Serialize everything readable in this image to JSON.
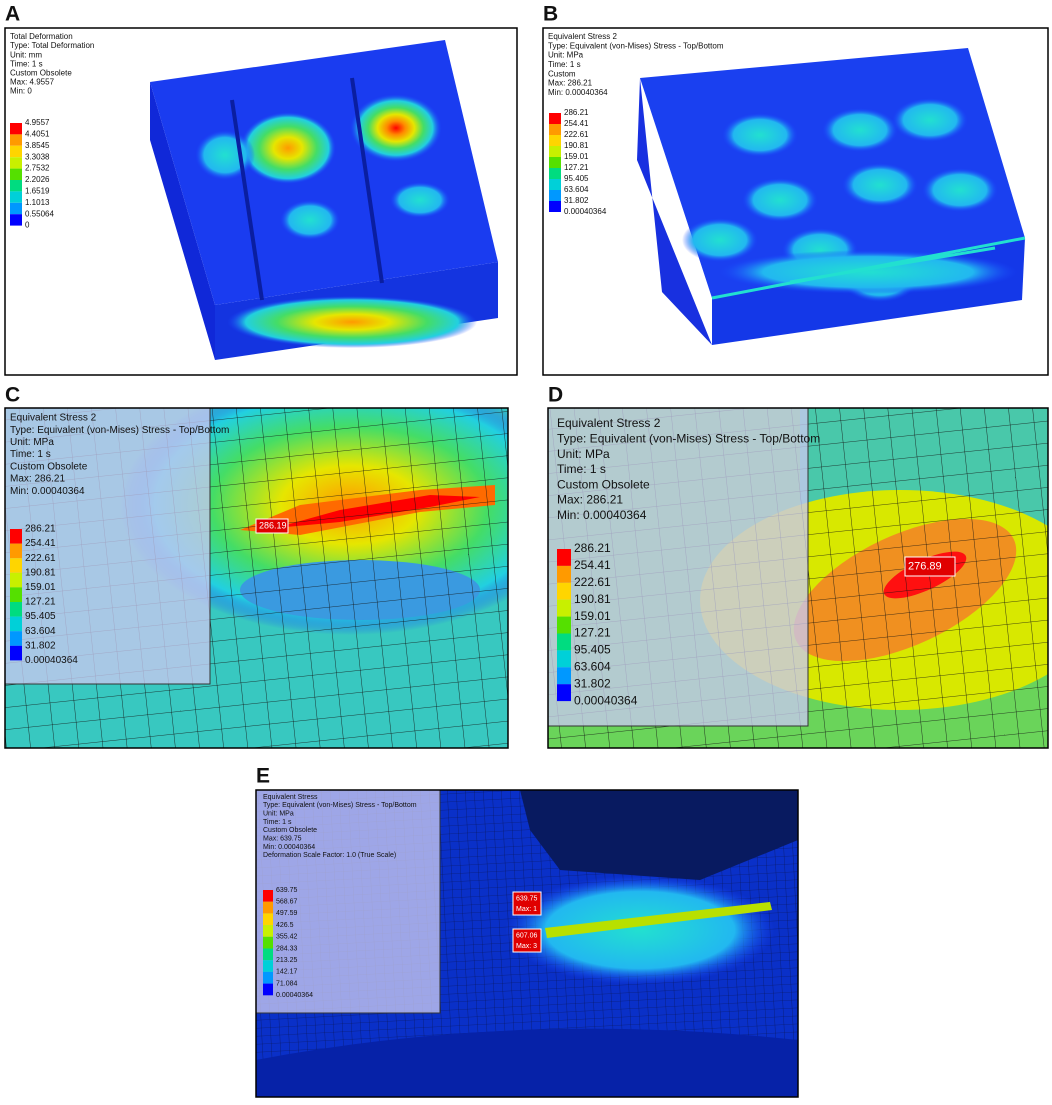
{
  "panels": [
    {
      "label": "A",
      "info": [
        "Total Deformation",
        "Type: Total Deformation",
        "Unit: mm",
        "Time: 1 s",
        "Custom Obsolete",
        "Max: 4.9557",
        "Min: 0"
      ],
      "legend": [
        "4.9557",
        "4.4051",
        "3.8545",
        "3.3038",
        "2.7532",
        "2.2026",
        "1.6519",
        "1.1013",
        "0.55064",
        "0"
      ]
    },
    {
      "label": "B",
      "info": [
        "Equivalent Stress 2",
        "Type: Equivalent (von-Mises) Stress - Top/Bottom",
        "Unit: MPa",
        "Time: 1 s",
        "Custom",
        "Max: 286.21",
        "Min: 0.00040364"
      ],
      "legend": [
        "286.21",
        "254.41",
        "222.61",
        "190.81",
        "159.01",
        "127.21",
        "95.405",
        "63.604",
        "31.802",
        "0.00040364"
      ]
    },
    {
      "label": "C",
      "info": [
        "Equivalent Stress 2",
        "Type: Equivalent (von-Mises) Stress - Top/Bottom",
        "Unit: MPa",
        "Time: 1 s",
        "Custom Obsolete",
        "Max: 286.21",
        "Min: 0.00040364"
      ],
      "legend": [
        "286.21",
        "254.41",
        "222.61",
        "190.81",
        "159.01",
        "127.21",
        "95.405",
        "63.604",
        "31.802",
        "0.00040364"
      ],
      "probes": [
        {
          "value": "286.19"
        }
      ]
    },
    {
      "label": "D",
      "info": [
        "Equivalent Stress 2",
        "Type: Equivalent (von-Mises) Stress - Top/Bottom",
        "Unit: MPa",
        "Time: 1 s",
        "Custom Obsolete",
        "Max: 286.21",
        "Min: 0.00040364"
      ],
      "legend": [
        "286.21",
        "254.41",
        "222.61",
        "190.81",
        "159.01",
        "127.21",
        "95.405",
        "63.604",
        "31.802",
        "0.00040364"
      ],
      "probes": [
        {
          "value": "276.89"
        }
      ]
    },
    {
      "label": "E",
      "info": [
        "Equivalent Stress",
        "Type: Equivalent (von-Mises) Stress - Top/Bottom",
        "Unit: MPa",
        "Time: 1 s",
        "Custom Obsolete",
        "Max: 639.75",
        "Min: 0.00040364",
        "Deformation Scale Factor: 1.0 (True Scale)"
      ],
      "legend": [
        "639.75",
        "568.67",
        "497.59",
        "426.5",
        "355.42",
        "284.33",
        "213.25",
        "142.17",
        "71.084",
        "0.00040364"
      ],
      "probes": [
        {
          "value": "639.75",
          "tag": "Max: 1"
        },
        {
          "value": "607.06",
          "tag": "Max: 3"
        }
      ]
    }
  ]
}
